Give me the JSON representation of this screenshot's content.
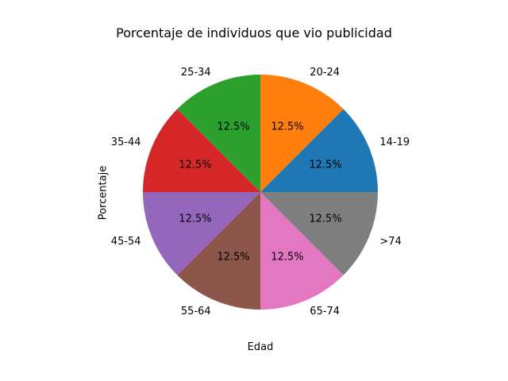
{
  "chart_data": {
    "type": "pie",
    "title": "Porcentaje de individuos que vio publicidad",
    "xlabel": "Edad",
    "ylabel": "Porcentaje",
    "categories": [
      "14-19",
      "20-24",
      "25-34",
      "35-44",
      "45-54",
      "55-64",
      "65-74",
      ">74"
    ],
    "values": [
      12.5,
      12.5,
      12.5,
      12.5,
      12.5,
      12.5,
      12.5,
      12.5
    ],
    "value_labels": [
      "12.5%",
      "12.5%",
      "12.5%",
      "12.5%",
      "12.5%",
      "12.5%",
      "12.5%",
      "12.5%"
    ],
    "colors": [
      "#1f77b4",
      "#ff7f0e",
      "#2ca02c",
      "#d62728",
      "#9467bd",
      "#8c564b",
      "#e377c2",
      "#7f7f7f"
    ],
    "start_angle_deg": 0,
    "direction": "counterclockwise",
    "legend": "none"
  }
}
